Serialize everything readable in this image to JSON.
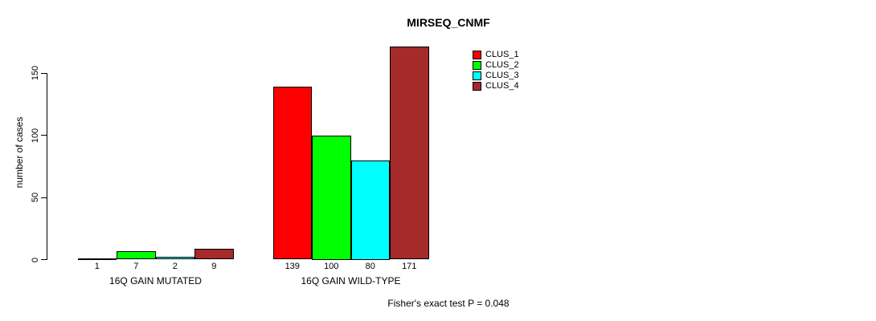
{
  "title": "MIRSEQ_CNMF",
  "ylabel": "number of cases",
  "footer": "Fisher's exact test P = 0.048",
  "colors": {
    "axis": "#000000",
    "background": "#ffffff"
  },
  "chart_data": {
    "type": "bar",
    "title": "MIRSEQ_CNMF",
    "xlabel": "",
    "ylabel": "number of cases",
    "categories": [
      "16Q GAIN MUTATED",
      "16Q GAIN WILD-TYPE"
    ],
    "series": [
      {
        "name": "CLUS_1",
        "color": "#FF0000",
        "values": [
          1,
          139
        ]
      },
      {
        "name": "CLUS_2",
        "color": "#00FF00",
        "values": [
          7,
          100
        ]
      },
      {
        "name": "CLUS_3",
        "color": "#00FFFF",
        "values": [
          2,
          80
        ]
      },
      {
        "name": "CLUS_4",
        "color": "#A52A2A",
        "values": [
          9,
          171
        ]
      }
    ],
    "yticks": [
      0,
      50,
      100,
      150
    ],
    "ylim": [
      0,
      175
    ],
    "grid": false,
    "legend_position": "top-right",
    "bar_value_labels": true,
    "annotation": "Fisher's exact test P = 0.048"
  }
}
